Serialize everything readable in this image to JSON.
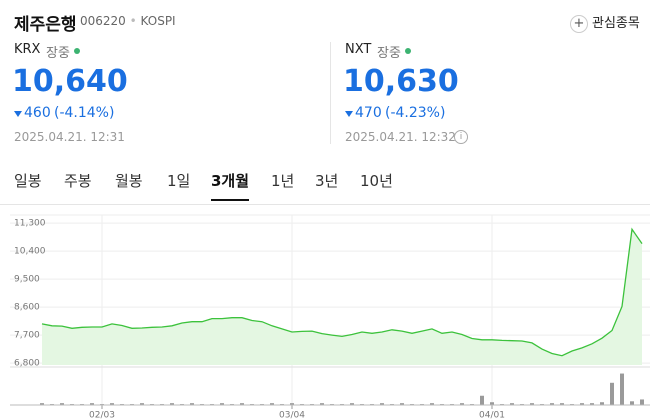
{
  "header": {
    "name": "제주은행",
    "code": "006220",
    "market": "KOSPI",
    "watch": "관심종목"
  },
  "quotes": [
    {
      "venue": "KRX",
      "status": "장중",
      "price": "10,640",
      "change": "460",
      "change_pct": "(-4.14%)",
      "time": "2025.04.21. 12:31"
    },
    {
      "venue": "NXT",
      "status": "장중",
      "price": "10,630",
      "change": "470",
      "change_pct": "(-4.23%)",
      "time": "2025.04.21. 12:32"
    }
  ],
  "tabs": [
    "일봉",
    "주봉",
    "월봉",
    "1일",
    "3개월",
    "1년",
    "3년",
    "10년"
  ],
  "active_tab": 4,
  "chart_data": {
    "type": "area",
    "categories": [
      null,
      null,
      null,
      null,
      null,
      null,
      "02/03",
      null,
      null,
      null,
      null,
      null,
      null,
      null,
      null,
      null,
      null,
      null,
      null,
      null,
      null,
      null,
      null,
      null,
      null,
      "03/04",
      null,
      null,
      null,
      null,
      null,
      null,
      null,
      null,
      null,
      null,
      null,
      null,
      null,
      null,
      null,
      null,
      null,
      null,
      null,
      "04/01",
      null,
      null,
      null,
      null,
      null,
      null,
      null,
      null,
      null,
      null,
      null,
      null,
      null,
      null,
      null
    ],
    "values": [
      8060,
      8000,
      7990,
      7920,
      7950,
      7960,
      7960,
      8060,
      8010,
      7920,
      7930,
      7950,
      7960,
      8000,
      8090,
      8130,
      8130,
      8230,
      8230,
      8260,
      8260,
      8170,
      8130,
      8000,
      7900,
      7800,
      7820,
      7830,
      7750,
      7700,
      7660,
      7720,
      7800,
      7760,
      7800,
      7870,
      7830,
      7760,
      7830,
      7900,
      7760,
      7800,
      7720,
      7590,
      7550,
      7550,
      7530,
      7520,
      7510,
      7450,
      7250,
      7110,
      7040,
      7190,
      7290,
      7420,
      7600,
      7850,
      8620,
      11100,
      10640
    ],
    "color": "#3cc23c",
    "fill": "#e4f7e2",
    "ylim": [
      6740,
      11560
    ],
    "yticks": [
      {
        "value": 6800,
        "label": "6,800"
      },
      {
        "value": 7700,
        "label": "7,700"
      },
      {
        "value": 8600,
        "label": "8,600"
      },
      {
        "value": 9500,
        "label": "9,500"
      },
      {
        "value": 10400,
        "label": "10,400"
      },
      {
        "value": 11300,
        "label": "11,300"
      }
    ],
    "grid": true,
    "volume": [
      2,
      1,
      2,
      1,
      1,
      2,
      1,
      2,
      1,
      1,
      2,
      1,
      1,
      2,
      1,
      2,
      1,
      1,
      2,
      1,
      2,
      1,
      1,
      2,
      1,
      2,
      1,
      1,
      2,
      1,
      1,
      2,
      1,
      1,
      2,
      1,
      2,
      1,
      1,
      2,
      1,
      1,
      2,
      1,
      10,
      3,
      1,
      2,
      1,
      2,
      1,
      2,
      2,
      1,
      2,
      2,
      3,
      24,
      34,
      4,
      6
    ],
    "volume_lim": [
      0,
      40
    ],
    "volume_color": "#9a9a9a"
  }
}
